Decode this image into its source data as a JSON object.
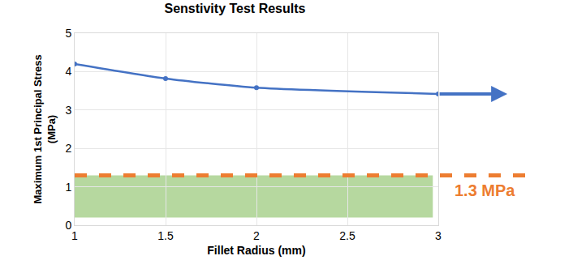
{
  "chart_data": {
    "type": "line",
    "title": "Senstivity Test Results",
    "x_label": "Fillet Radius (mm)",
    "y_label": [
      "Maximum 1st Principal Stress",
      "(MPa)"
    ],
    "x": [
      1,
      1.5,
      2,
      3
    ],
    "values": [
      4.2,
      3.82,
      3.58,
      3.42
    ],
    "color": "#4472c4",
    "marker": "circle",
    "xlim": [
      1,
      3
    ],
    "xticks": [
      1,
      1.5,
      2,
      2.5,
      3
    ],
    "ylim": [
      0,
      5
    ],
    "yticks": [
      0,
      1,
      2,
      3,
      4,
      5
    ],
    "grid": true,
    "threshold": {
      "value": 1.3,
      "label": "1.3 MPa",
      "color": "#ed7d31",
      "line_style": "dash"
    },
    "band": {
      "x": [
        1,
        2.97
      ],
      "y": [
        0.2,
        1.3
      ],
      "color": "#a9d18e"
    }
  }
}
